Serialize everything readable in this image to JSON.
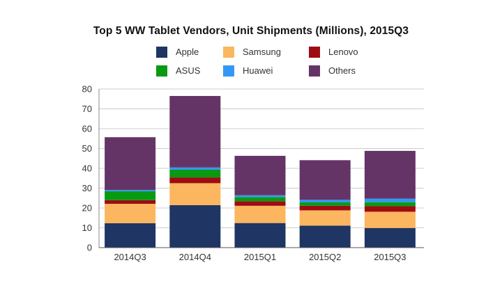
{
  "chart_data": {
    "type": "bar",
    "stacked": true,
    "title": "Top 5 WW Tablet Vendors, Unit Shipments (Millions), 2015Q3",
    "xlabel": "",
    "ylabel": "",
    "ylim": [
      0,
      80
    ],
    "yticks": [
      0,
      10,
      20,
      30,
      40,
      50,
      60,
      70,
      80
    ],
    "grid": true,
    "legend_position": "top",
    "categories": [
      "2014Q3",
      "2014Q4",
      "2015Q1",
      "2015Q2",
      "2015Q3"
    ],
    "series": [
      {
        "name": "Apple",
        "color": "#1f3564",
        "values": [
          12.3,
          21.4,
          12.4,
          11.1,
          9.9
        ]
      },
      {
        "name": "Samsung",
        "color": "#fbb65f",
        "values": [
          9.8,
          11.1,
          8.7,
          7.7,
          8.2
        ]
      },
      {
        "name": "Lenovo",
        "color": "#9e0c12",
        "values": [
          1.8,
          2.9,
          2.3,
          2.3,
          2.8
        ]
      },
      {
        "name": "ASUS",
        "color": "#0a9a12",
        "values": [
          4.5,
          3.9,
          2.1,
          1.7,
          2.0
        ]
      },
      {
        "name": "Huawei",
        "color": "#3398f5",
        "values": [
          0.7,
          1.1,
          0.9,
          1.3,
          1.8
        ]
      },
      {
        "name": "Others",
        "color": "#653467",
        "values": [
          26.6,
          36.1,
          19.9,
          20.0,
          24.1
        ]
      }
    ]
  }
}
